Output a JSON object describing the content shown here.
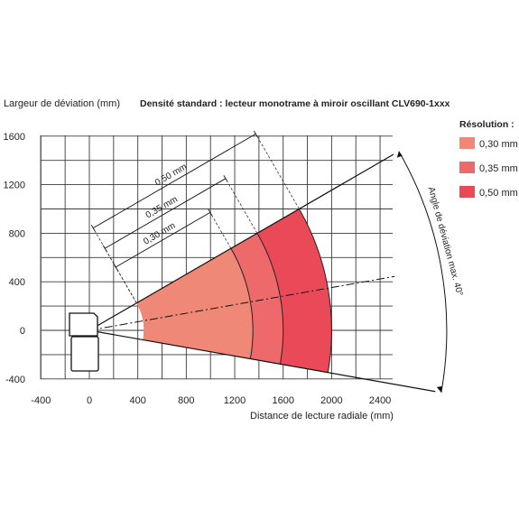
{
  "title": "Densité standard : lecteur monotrame à miroir oscillant CLV690-1xxx",
  "chart_data": {
    "type": "area",
    "xlabel": "Distance de lecture radiale (mm)",
    "ylabel": "Largeur de déviation (mm)",
    "xlim": [
      -400,
      2600
    ],
    "ylim": [
      -400,
      1700
    ],
    "x_ticks": [
      "-400",
      "0",
      "400",
      "800",
      "1200",
      "1600",
      "2000",
      "2400"
    ],
    "y_ticks": [
      "-400",
      "0",
      "400",
      "800",
      "1200",
      "1600"
    ],
    "grid": true,
    "legend_title": "Résolution :",
    "legend_placement": "right",
    "series": [
      {
        "name": "0,30 mm",
        "color": "#f08878",
        "inner_radius": 450,
        "outer_radius": 1350
      },
      {
        "name": "0,35 mm",
        "color": "#ee6a6a",
        "inner_radius": 450,
        "outer_radius": 1600
      },
      {
        "name": "0,50 mm",
        "color": "#ea4a58",
        "inner_radius": 450,
        "outer_radius": 2000
      }
    ],
    "fan": {
      "apex_x": 0,
      "apex_y": 0,
      "upper_angle_deg": 30,
      "lower_angle_deg": -10,
      "deviation_angle_deg": 40
    },
    "dimensions": [
      "0,50 mm",
      "0,35 mm",
      "0,30 mm"
    ],
    "angle_label": "Angle de déviation max. 40°"
  }
}
